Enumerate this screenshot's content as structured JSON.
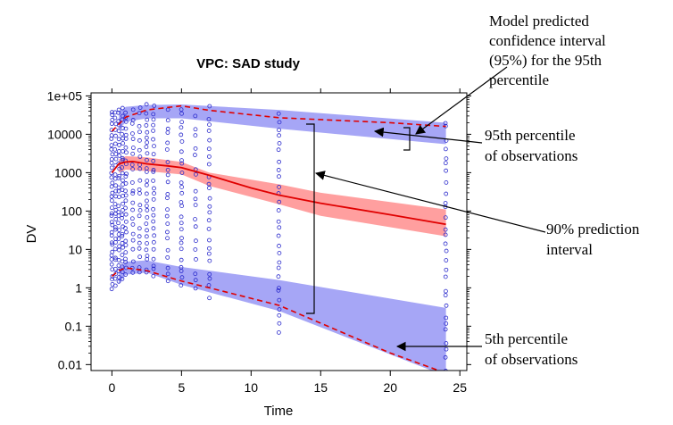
{
  "chart_data": {
    "type": "scatter",
    "title": "VPC: SAD study",
    "xlabel": "Time",
    "ylabel": "DV",
    "xlim": [
      -1.5,
      25.5
    ],
    "ylim": [
      0.007,
      120000
    ],
    "yscale": "log",
    "xticks": [
      0,
      5,
      10,
      15,
      20,
      25
    ],
    "yticks": [
      {
        "value": 100000,
        "label": "1e+05"
      },
      {
        "value": 10000,
        "label": "10000"
      },
      {
        "value": 1000,
        "label": "1000"
      },
      {
        "value": 100,
        "label": "100"
      },
      {
        "value": 10,
        "label": "10"
      },
      {
        "value": 1,
        "label": "1"
      },
      {
        "value": 0.1,
        "label": "0.1"
      },
      {
        "value": 0.01,
        "label": "0.01"
      }
    ],
    "colors": {
      "pi_band": "#ff9f9f",
      "ci_band": "#a6a6f6",
      "median_line": "#e00000",
      "percentile_line": "#e00000",
      "points": "#2a2acc"
    },
    "bands": [
      {
        "role": "ci-95th-percentile",
        "x": [
          0.5,
          1,
          2.5,
          5,
          12,
          24
        ],
        "lower": [
          13000,
          21000,
          26000,
          26000,
          14000,
          5500
        ],
        "upper": [
          38000,
          52000,
          58000,
          60000,
          43000,
          20000
        ]
      },
      {
        "role": "pi-90",
        "x": [
          0.5,
          1,
          2.5,
          5,
          7,
          12,
          15,
          24
        ],
        "lower": [
          1000,
          1200,
          1100,
          900,
          450,
          150,
          75,
          22
        ],
        "upper": [
          2200,
          2700,
          2500,
          1900,
          1000,
          500,
          300,
          110
        ]
      },
      {
        "role": "ci-5th-percentile",
        "x": [
          0.5,
          1,
          2.5,
          5,
          12,
          24
        ],
        "lower": [
          1.3,
          2.2,
          2.5,
          1.2,
          0.25,
          0.005
        ],
        "upper": [
          3.2,
          4.8,
          5.2,
          3.5,
          1.6,
          0.3
        ]
      }
    ],
    "lines": [
      {
        "role": "median",
        "style": "solid",
        "x": [
          0,
          0.5,
          1,
          1.5,
          2.5,
          4,
          5,
          7,
          10,
          12,
          15,
          20,
          24
        ],
        "y": [
          1000,
          1700,
          1900,
          1950,
          1700,
          1500,
          1350,
          850,
          400,
          260,
          160,
          80,
          45
        ]
      },
      {
        "role": "95th-percentile-observed",
        "style": "dashed",
        "x": [
          0,
          1,
          2.5,
          5,
          7,
          12,
          20,
          24
        ],
        "y": [
          12000,
          28000,
          43000,
          55000,
          42000,
          27000,
          20000,
          16000
        ]
      },
      {
        "role": "5th-percentile-observed",
        "style": "dashed",
        "x": [
          0,
          0.5,
          1,
          2.5,
          5,
          7,
          12,
          15,
          20,
          24
        ],
        "y": [
          2,
          2.8,
          3.3,
          2.8,
          1.5,
          1.0,
          0.35,
          0.12,
          0.02,
          0.006
        ]
      }
    ],
    "observations": {
      "times": [
        0,
        0.25,
        0.5,
        0.75,
        1,
        1.5,
        2,
        2.5,
        3,
        4,
        5,
        6,
        7,
        12,
        24
      ],
      "ranges": [
        [
          0.8,
          50000
        ],
        [
          1,
          45000
        ],
        [
          1.2,
          60000
        ],
        [
          1.5,
          55000
        ],
        [
          1.8,
          52000
        ],
        [
          1.8,
          60000
        ],
        [
          2,
          65000
        ],
        [
          2,
          70000
        ],
        [
          1.5,
          75000
        ],
        [
          1.2,
          55000
        ],
        [
          0.9,
          60000
        ],
        [
          0.6,
          45000
        ],
        [
          0.5,
          60000
        ],
        [
          0.05,
          55000
        ],
        [
          0.004,
          32000
        ]
      ],
      "points_per_time": [
        38,
        30,
        30,
        30,
        28,
        22,
        22,
        28,
        26,
        22,
        26,
        18,
        24,
        28,
        30
      ]
    },
    "annotations": [
      {
        "text": [
          "Model predicted",
          "confidence interval",
          "(95%) for the 95th",
          "percentile"
        ]
      },
      {
        "text": [
          "95th percentile",
          "of observations"
        ]
      },
      {
        "text": [
          "90% prediction",
          "interval"
        ]
      },
      {
        "text": [
          "5th percentile",
          "of observations"
        ]
      }
    ]
  }
}
